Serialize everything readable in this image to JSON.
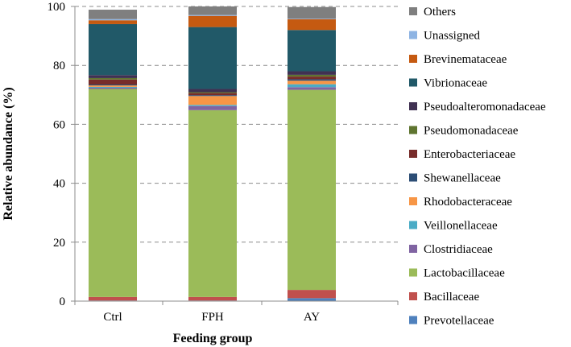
{
  "chart_data": {
    "type": "bar",
    "stacked": true,
    "title": "",
    "xlabel": "Feeding group",
    "ylabel": "Relative abundance (%)",
    "ylim": [
      0,
      100
    ],
    "yticks": [
      0,
      20,
      40,
      60,
      80,
      100
    ],
    "grid": "horizontal-dashed",
    "legend_position": "right",
    "categories": [
      "Ctrl",
      "FPH",
      "AY"
    ],
    "series": [
      {
        "name": "Prevotellaceae",
        "color": "#4f81bd",
        "values": [
          0.2,
          0.2,
          1.0
        ]
      },
      {
        "name": "Bacillaceae",
        "color": "#c0504d",
        "values": [
          1.2,
          1.2,
          2.8
        ]
      },
      {
        "name": "Lactobacillaceae",
        "color": "#9bbb59",
        "values": [
          70.6,
          63.4,
          67.9
        ]
      },
      {
        "name": "Clostridiaceae",
        "color": "#8064a2",
        "values": [
          0.4,
          1.4,
          0.9
        ]
      },
      {
        "name": "Veillonellaceae",
        "color": "#4bacc6",
        "values": [
          0.3,
          0.4,
          1.0
        ]
      },
      {
        "name": "Rhodobacteraceae",
        "color": "#f79646",
        "values": [
          0.5,
          3.0,
          1.2
        ]
      },
      {
        "name": "Shewanellaceae",
        "color": "#2c4d75",
        "values": [
          0.3,
          0.3,
          0.5
        ]
      },
      {
        "name": "Enterobacteriaceae",
        "color": "#772c2a",
        "values": [
          1.7,
          0.7,
          0.9
        ]
      },
      {
        "name": "Pseudomonadaceae",
        "color": "#5f7530",
        "values": [
          0.5,
          0.3,
          0.6
        ]
      },
      {
        "name": "Pseudoalteromonadaceae",
        "color": "#403152",
        "values": [
          1.0,
          1.1,
          1.2
        ]
      },
      {
        "name": "Vibrionaceae",
        "color": "#215968",
        "values": [
          17.3,
          21.0,
          14.0
        ]
      },
      {
        "name": "Brevinemataceae",
        "color": "#c55a11",
        "values": [
          1.3,
          3.8,
          3.7
        ]
      },
      {
        "name": "Unassigned",
        "color": "#8eb4e3",
        "values": [
          0.4,
          0.3,
          0.2
        ]
      },
      {
        "name": "Others",
        "color": "#7f7f7f",
        "values": [
          3.2,
          2.9,
          3.9
        ]
      }
    ]
  }
}
